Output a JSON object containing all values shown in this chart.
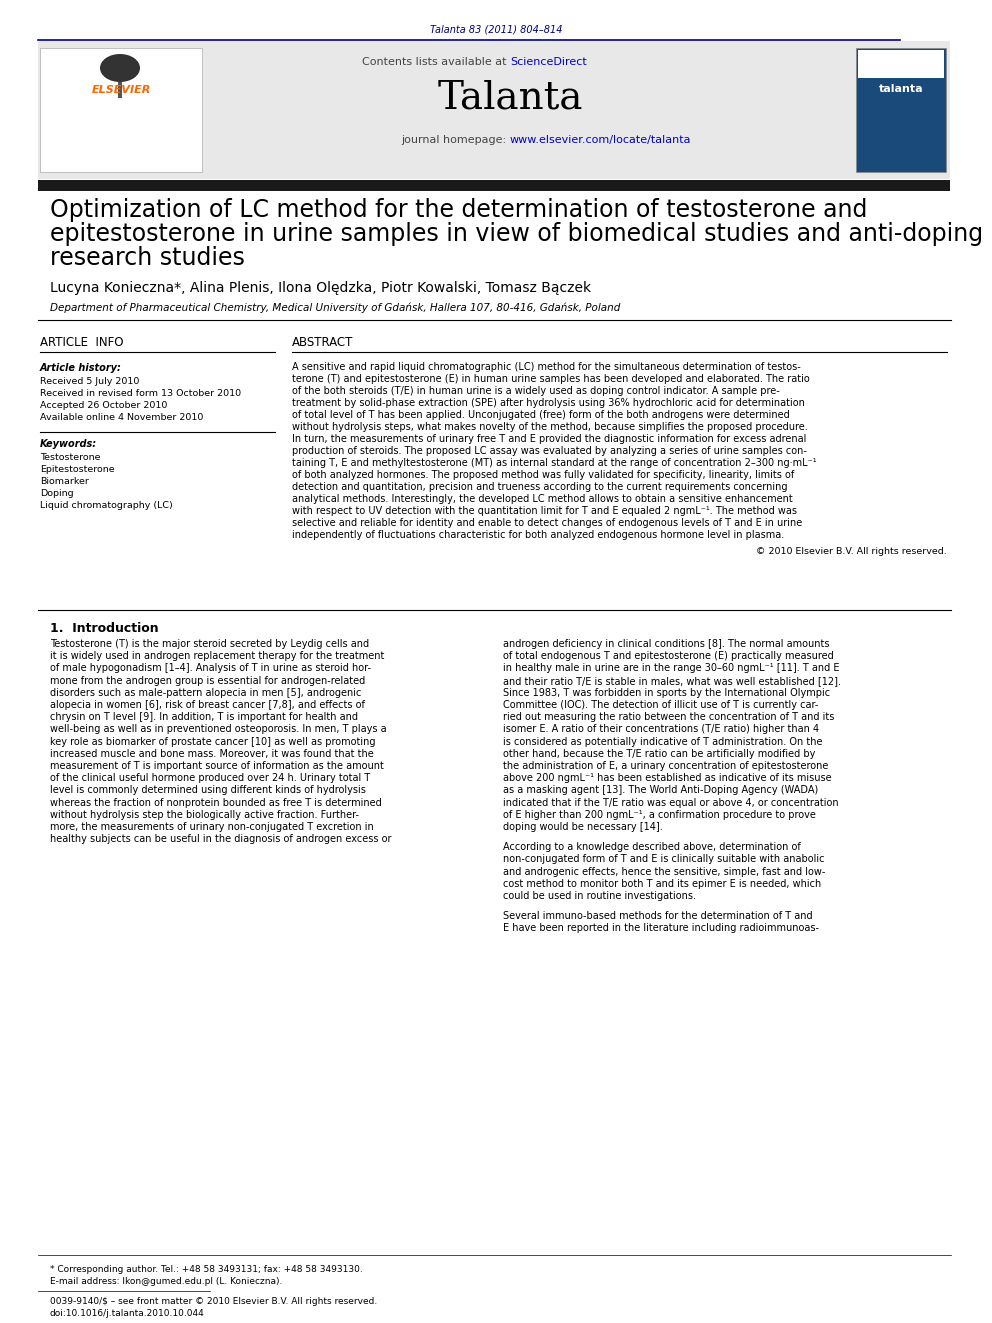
{
  "page_bg": "#ffffff",
  "header_journal_ref": "Talanta 83 (2011) 804–814",
  "header_journal_ref_color": "#000080",
  "header_bar_color": "#00008B",
  "journal_name": "Talanta",
  "journal_name_size": 28,
  "contents_text": "Contents lists available at ",
  "science_direct": "ScienceDirect",
  "science_direct_color": "#0000CC",
  "journal_homepage_text": "journal homepage: ",
  "journal_homepage_url": "www.elsevier.com/locate/talanta",
  "journal_homepage_url_color": "#0000CC",
  "header_bg": "#E8E8E8",
  "elsevier_color": "#FF6600",
  "black_bar_color": "#1a1a1a",
  "article_title_line1": "Optimization of LC method for the determination of testosterone and",
  "article_title_line2": "epitestosterone in urine samples in view of biomedical studies and anti-doping",
  "article_title_line3": "research studies",
  "article_title_size": 17,
  "authors": "Lucyna Konieczna*, Alina Plenis, Ilona Olędzka, Piotr Kowalski, Tomasz Bączek",
  "authors_size": 10,
  "affiliation": "Department of Pharmaceutical Chemistry, Medical University of Gdańsk, Hallera 107, 80-416, Gdańsk, Poland",
  "affiliation_size": 7.5,
  "article_info_title": "ARTICLE  INFO",
  "abstract_title": "ABSTRACT",
  "section_title_size": 8.5,
  "article_history_label": "Article history:",
  "received1": "Received 5 July 2010",
  "received2": "Received in revised form 13 October 2010",
  "accepted": "Accepted 26 October 2010",
  "available": "Available online 4 November 2010",
  "keywords_label": "Keywords:",
  "keywords": [
    "Testosterone",
    "Epitestosterone",
    "Biomarker",
    "Doping",
    "Liquid chromatography (LC)"
  ],
  "copyright_text": "© 2010 Elsevier B.V. All rights reserved.",
  "intro_title": "1.  Introduction",
  "footnote_asterisk": "* Corresponding author. Tel.: +48 58 3493131; fax: +48 58 3493130.",
  "footnote_email": "E-mail address: lkon@gumed.edu.pl (L. Konieczna).",
  "footnote_issn": "0039-9140/$ – see front matter © 2010 Elsevier B.V. All rights reserved.",
  "footnote_doi": "doi:10.1016/j.talanta.2010.10.044",
  "small_text_size": 6.5,
  "body_text_size": 7.0,
  "intro_title_size": 9,
  "abstract_lines": [
    "A sensitive and rapid liquid chromatographic (LC) method for the simultaneous determination of testos-",
    "terone (T) and epitestosterone (E) in human urine samples has been developed and elaborated. The ratio",
    "of the both steroids (T/E) in human urine is a widely used as doping control indicator. A sample pre-",
    "treatment by solid-phase extraction (SPE) after hydrolysis using 36% hydrochloric acid for determination",
    "of total level of T has been applied. Unconjugated (free) form of the both androgens were determined",
    "without hydrolysis steps, what makes novelty of the method, because simplifies the proposed procedure.",
    "In turn, the measurements of urinary free T and E provided the diagnostic information for excess adrenal",
    "production of steroids. The proposed LC assay was evaluated by analyzing a series of urine samples con-",
    "taining T, E and methyltestosterone (MT) as internal standard at the range of concentration 2–300 ng·mL⁻¹",
    "of both analyzed hormones. The proposed method was fully validated for specificity, linearity, limits of",
    "detection and quantitation, precision and trueness according to the current requirements concerning",
    "analytical methods. Interestingly, the developed LC method allows to obtain a sensitive enhancement",
    "with respect to UV detection with the quantitation limit for T and E equaled 2 ngmL⁻¹. The method was",
    "selective and reliable for identity and enable to detect changes of endogenous levels of T and E in urine",
    "independently of fluctuations characteristic for both analyzed endogenous hormone level in plasma."
  ],
  "intro_col1_lines": [
    "Testosterone (T) is the major steroid secreted by Leydig cells and",
    "it is widely used in androgen replacement therapy for the treatment",
    "of male hypogonadism [1–4]. Analysis of T in urine as steroid hor-",
    "mone from the androgen group is essential for androgen-related",
    "disorders such as male-pattern alopecia in men [5], androgenic",
    "alopecia in women [6], risk of breast cancer [7,8], and effects of",
    "chrysin on T level [9]. In addition, T is important for health and",
    "well-being as well as in preventioned osteoporosis. In men, T plays a",
    "key role as biomarker of prostate cancer [10] as well as promoting",
    "increased muscle and bone mass. Moreover, it was found that the",
    "measurement of T is important source of information as the amount",
    "of the clinical useful hormone produced over 24 h. Urinary total T",
    "level is commonly determined using different kinds of hydrolysis",
    "whereas the fraction of nonprotein bounded as free T is determined",
    "without hydrolysis step the biologically active fraction. Further-",
    "more, the measurements of urinary non-conjugated T excretion in",
    "healthy subjects can be useful in the diagnosis of androgen excess or"
  ],
  "intro_col2_lines": [
    "androgen deficiency in clinical conditions [8]. The normal amounts",
    "of total endogenous T and epitestosterone (E) practically measured",
    "in healthy male in urine are in the range 30–60 ngmL⁻¹ [11]. T and E",
    "and their ratio T/E is stable in males, what was well established [12].",
    "Since 1983, T was forbidden in sports by the International Olympic",
    "Committee (IOC). The detection of illicit use of T is currently car-",
    "ried out measuring the ratio between the concentration of T and its",
    "isomer E. A ratio of their concentrations (T/E ratio) higher than 4",
    "is considered as potentially indicative of T administration. On the",
    "other hand, because the T/E ratio can be artificially modified by",
    "the administration of E, a urinary concentration of epitestosterone",
    "above 200 ngmL⁻¹ has been established as indicative of its misuse",
    "as a masking agent [13]. The World Anti-Doping Agency (WADA)",
    "indicated that if the T/E ratio was equal or above 4, or concentration",
    "of E higher than 200 ngmL⁻¹, a confirmation procedure to prove",
    "doping would be necessary [14].",
    "",
    "According to a knowledge described above, determination of",
    "non-conjugated form of T and E is clinically suitable with anabolic",
    "and androgenic effects, hence the sensitive, simple, fast and low-",
    "cost method to monitor both T and its epimer E is needed, which",
    "could be used in routine investigations.",
    "",
    "Several immuno-based methods for the determination of T and",
    "E have been reported in the literature including radioimmunoas-"
  ]
}
